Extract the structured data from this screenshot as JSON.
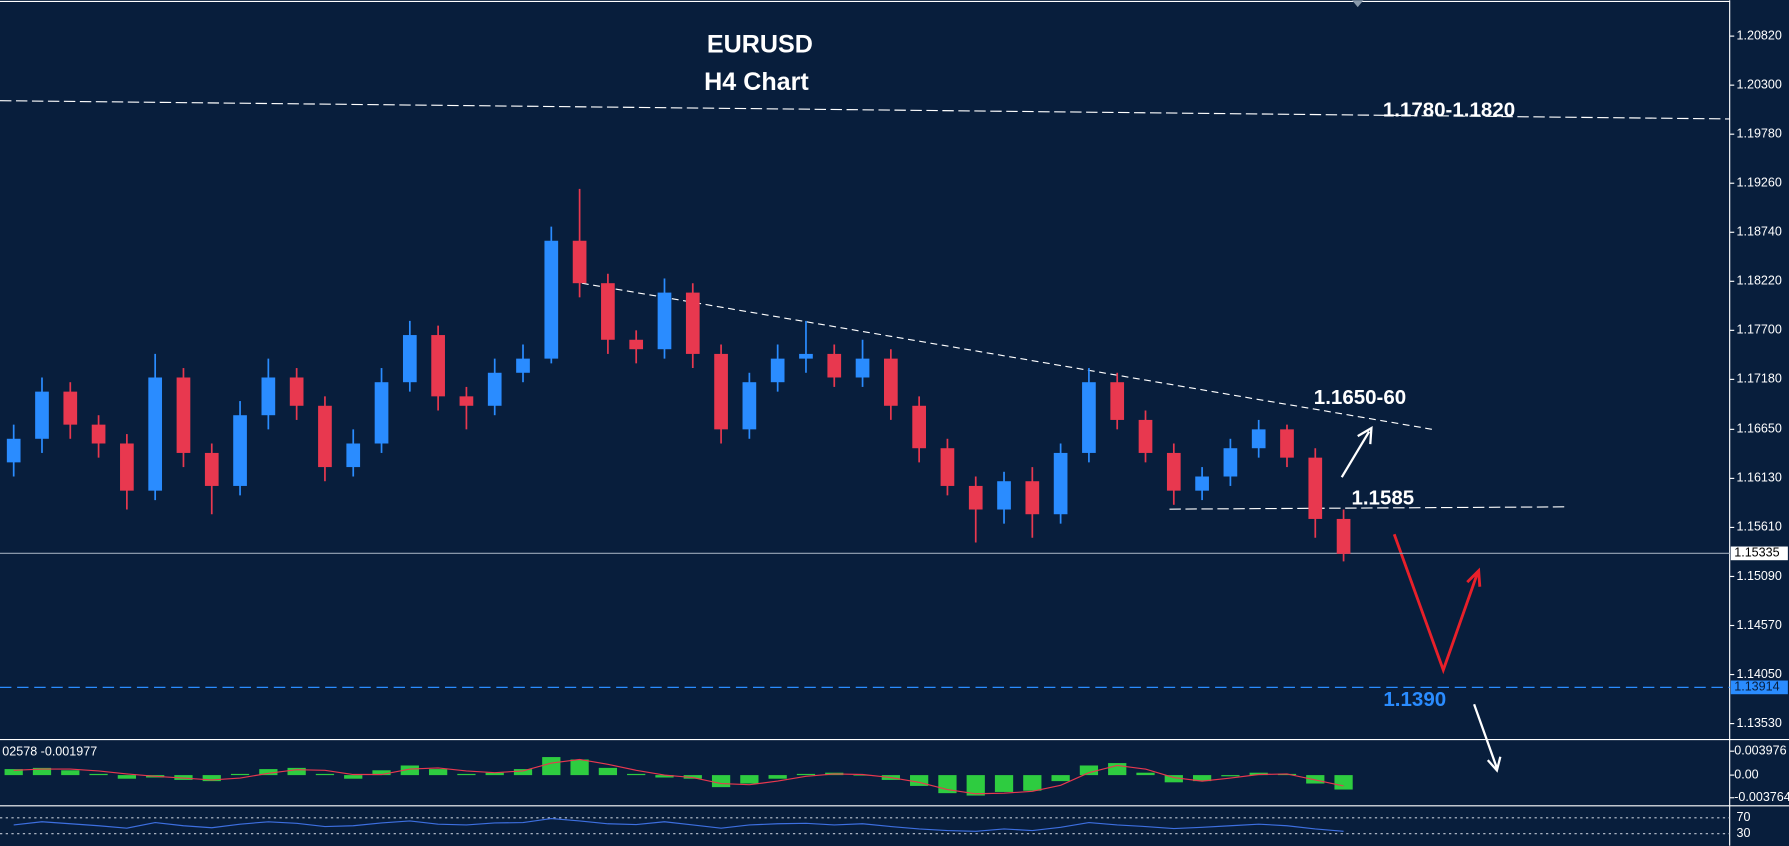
{
  "chart_data": {
    "type": "candlestick",
    "title": "EURUSD",
    "subtitle": "H4 Chart",
    "annotations": [
      "1.1780-1.1820",
      "1.1650-60",
      "1.1585",
      "1.1390"
    ],
    "open": [
      1.163,
      1.1655,
      1.1705,
      1.167,
      1.165,
      1.16,
      1.172,
      1.164,
      1.1605,
      1.168,
      1.172,
      1.169,
      1.1625,
      1.165,
      1.1715,
      1.1765,
      1.17,
      1.169,
      1.1725,
      1.174,
      1.1865,
      1.182,
      1.176,
      1.175,
      1.181,
      1.1745,
      1.1665,
      1.1715,
      1.174,
      1.1745,
      1.172,
      1.174,
      1.169,
      1.1645,
      1.1605,
      1.158,
      1.161,
      1.1575,
      1.164,
      1.1715,
      1.1675,
      1.164,
      1.16,
      1.1615,
      1.1645,
      1.1665,
      1.1635,
      1.157
    ],
    "high": [
      1.167,
      1.172,
      1.1715,
      1.168,
      1.166,
      1.1745,
      1.173,
      1.165,
      1.1695,
      1.174,
      1.173,
      1.17,
      1.1665,
      1.173,
      1.178,
      1.1775,
      1.171,
      1.174,
      1.1755,
      1.188,
      1.192,
      1.183,
      1.177,
      1.1825,
      1.182,
      1.1755,
      1.1725,
      1.1755,
      1.178,
      1.1755,
      1.176,
      1.175,
      1.17,
      1.1655,
      1.1615,
      1.162,
      1.1625,
      1.165,
      1.173,
      1.1725,
      1.1685,
      1.165,
      1.1625,
      1.1655,
      1.1675,
      1.167,
      1.1645,
      1.158
    ],
    "low": [
      1.1615,
      1.164,
      1.1655,
      1.1635,
      1.158,
      1.159,
      1.1625,
      1.1575,
      1.1595,
      1.1665,
      1.1675,
      1.161,
      1.1615,
      1.164,
      1.1705,
      1.1685,
      1.1665,
      1.168,
      1.1715,
      1.1735,
      1.1805,
      1.1745,
      1.1735,
      1.174,
      1.173,
      1.165,
      1.1655,
      1.1705,
      1.1725,
      1.171,
      1.171,
      1.1675,
      1.163,
      1.1595,
      1.1545,
      1.1565,
      1.155,
      1.1565,
      1.163,
      1.1665,
      1.163,
      1.1585,
      1.159,
      1.1605,
      1.1635,
      1.1625,
      1.155,
      1.1525
    ],
    "close": [
      1.1655,
      1.1705,
      1.167,
      1.165,
      1.16,
      1.172,
      1.164,
      1.1605,
      1.168,
      1.172,
      1.169,
      1.1625,
      1.165,
      1.1715,
      1.1765,
      1.17,
      1.169,
      1.1725,
      1.174,
      1.1865,
      1.182,
      1.176,
      1.175,
      1.181,
      1.1745,
      1.1665,
      1.1715,
      1.174,
      1.1745,
      1.172,
      1.174,
      1.169,
      1.1645,
      1.1605,
      1.158,
      1.161,
      1.1575,
      1.164,
      1.1715,
      1.1675,
      1.164,
      1.16,
      1.1615,
      1.1645,
      1.1665,
      1.1635,
      1.157,
      1.1533
    ],
    "up_color": "#2a8cff",
    "down_color": "#e8384f",
    "current_price": 1.15335,
    "target_price": 1.13914,
    "ylim": [
      1.1336,
      1.212
    ],
    "yticks": [
      {
        "value": 1.2082,
        "label": "1.20820"
      },
      {
        "value": 1.203,
        "label": "1.20300"
      },
      {
        "value": 1.1978,
        "label": "1.19780"
      },
      {
        "value": 1.1926,
        "label": "1.19260"
      },
      {
        "value": 1.1874,
        "label": "1.18740"
      },
      {
        "value": 1.1822,
        "label": "1.18220"
      },
      {
        "value": 1.177,
        "label": "1.17700"
      },
      {
        "value": 1.1718,
        "label": "1.17180"
      },
      {
        "value": 1.1665,
        "label": "1.16650"
      },
      {
        "value": 1.1613,
        "label": "1.16130"
      },
      {
        "value": 1.1561,
        "label": "1.15610"
      },
      {
        "value": 1.1509,
        "label": "1.15090"
      },
      {
        "value": 1.1457,
        "label": "1.14570"
      },
      {
        "value": 1.1405,
        "label": "1.14050"
      },
      {
        "value": 1.1353,
        "label": "1.13530"
      }
    ],
    "macd": {
      "label": "02578 -0.001977",
      "color": "#2ecc40",
      "signal_color": "#e8384f",
      "histogram": [
        0.001,
        0.0012,
        0.0008,
        0.0002,
        -0.0006,
        -0.0004,
        -0.0008,
        -0.001,
        0.0002,
        0.001,
        0.0012,
        0.0002,
        -0.0006,
        0.0008,
        0.0016,
        0.001,
        0.0002,
        0.0004,
        0.001,
        0.003,
        0.0026,
        0.0012,
        0.0002,
        -0.0004,
        -0.0006,
        -0.002,
        -0.0014,
        -0.0006,
        0.0002,
        0.0004,
        0.0,
        -0.0008,
        -0.0018,
        -0.003,
        -0.0034,
        -0.0028,
        -0.0026,
        -0.001,
        0.0016,
        0.002,
        0.0004,
        -0.0012,
        -0.001,
        -0.0002,
        0.0004,
        0.0002,
        -0.0014,
        -0.0024
      ],
      "signal": [
        0.0008,
        0.001,
        0.001,
        0.0007,
        0.0002,
        -0.0002,
        -0.0005,
        -0.0008,
        -0.0005,
        0.0003,
        0.0009,
        0.0008,
        0.0001,
        0.0001,
        0.001,
        0.0012,
        0.0007,
        0.0004,
        0.0007,
        0.002,
        0.0026,
        0.0018,
        0.0008,
        0.0,
        -0.0004,
        -0.0014,
        -0.0016,
        -0.001,
        -0.0002,
        0.0002,
        0.0001,
        -0.0004,
        -0.0012,
        -0.0024,
        -0.0031,
        -0.003,
        -0.0027,
        -0.0017,
        0.0004,
        0.0016,
        0.001,
        -0.0004,
        -0.001,
        -0.0005,
        0.0001,
        0.0002,
        -0.0008,
        -0.0018
      ],
      "ylim": [
        -0.0051,
        0.0059
      ],
      "yticks": [
        0.003976,
        {
          "value": 0,
          "label": "0.00"
        },
        -0.003764
      ]
    },
    "rsi": {
      "color": "#3d6fe0",
      "values": [
        52,
        60,
        55,
        50,
        44,
        58,
        50,
        45,
        54,
        60,
        56,
        48,
        50,
        57,
        62,
        54,
        52,
        57,
        58,
        68,
        62,
        55,
        53,
        60,
        52,
        44,
        52,
        55,
        56,
        52,
        55,
        48,
        42,
        38,
        36,
        42,
        38,
        46,
        58,
        52,
        48,
        43,
        46,
        50,
        54,
        50,
        42,
        36
      ],
      "ylim": [
        0,
        100
      ],
      "yticks": [
        70,
        30
      ]
    }
  }
}
